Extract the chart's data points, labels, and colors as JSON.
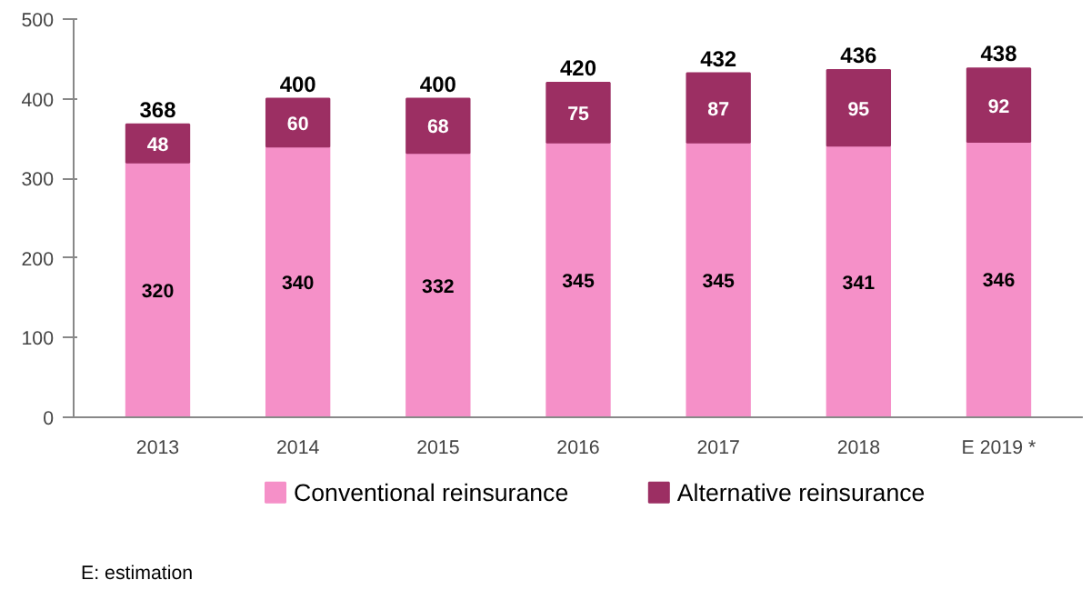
{
  "chart_data": {
    "type": "bar",
    "stacked": true,
    "categories": [
      "2013",
      "2014",
      "2015",
      "2016",
      "2017",
      "2018",
      "E 2019 *"
    ],
    "series": [
      {
        "name": "Conventional reinsurance",
        "color": "#f590c8",
        "values": [
          320,
          340,
          332,
          345,
          345,
          341,
          346
        ]
      },
      {
        "name": "Alternative reinsurance",
        "color": "#9c2f63",
        "values": [
          48,
          60,
          68,
          75,
          87,
          95,
          92
        ]
      }
    ],
    "totals": [
      "368",
      "400",
      "400",
      "420",
      "432",
      "436",
      "438"
    ],
    "data_labels": true,
    "ylim": [
      0,
      500
    ],
    "yticks": [
      0,
      100,
      200,
      300,
      400,
      500
    ],
    "grid": false,
    "legend": "bottom",
    "annotations": [
      "E: estimation"
    ]
  }
}
